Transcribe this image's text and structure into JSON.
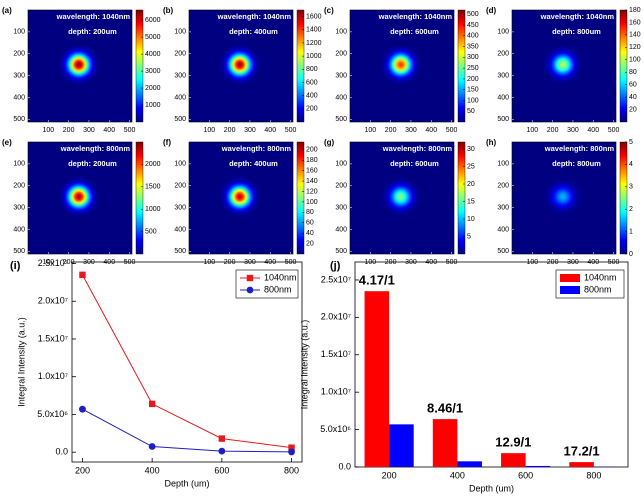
{
  "chart_data": [
    {
      "type": "heatmap",
      "label": "(a)",
      "annotations": [
        "wavelength: 1040nm",
        "depth: 200um"
      ],
      "xlim": [
        0,
        512
      ],
      "ylim": [
        0,
        512
      ],
      "xticks": [
        100,
        200,
        300,
        400,
        500
      ],
      "yticks": [
        100,
        200,
        300,
        400,
        500
      ],
      "clim": [
        0,
        6600
      ],
      "cticks": [
        1000,
        2000,
        3000,
        4000,
        5000,
        6000
      ],
      "center": [
        250,
        250
      ],
      "peak": 6500,
      "colormap": "jet"
    },
    {
      "type": "heatmap",
      "label": "(b)",
      "annotations": [
        "wavelength: 1040nm",
        "depth: 400um"
      ],
      "xlim": [
        0,
        512
      ],
      "ylim": [
        0,
        512
      ],
      "xticks": [
        100,
        200,
        300,
        400,
        500
      ],
      "yticks": [
        100,
        200,
        300,
        400,
        500
      ],
      "clim": [
        0,
        1700
      ],
      "cticks": [
        200,
        400,
        600,
        800,
        1000,
        1200,
        1400,
        1600
      ],
      "center": [
        250,
        250
      ],
      "peak": 1650,
      "colormap": "jet"
    },
    {
      "type": "heatmap",
      "label": "(c)",
      "annotations": [
        "wavelength: 1040nm",
        "depth: 600um"
      ],
      "xlim": [
        0,
        512
      ],
      "ylim": [
        0,
        512
      ],
      "xticks": [
        100,
        200,
        300,
        400,
        500
      ],
      "yticks": [
        100,
        200,
        300,
        400,
        500
      ],
      "clim": [
        0,
        520
      ],
      "cticks": [
        50,
        100,
        150,
        200,
        250,
        300,
        350,
        400,
        450,
        500
      ],
      "center": [
        250,
        250
      ],
      "peak": 430,
      "colormap": "jet"
    },
    {
      "type": "heatmap",
      "label": "(d)",
      "annotations": [
        "wavelength: 1040nm",
        "depth: 800um"
      ],
      "xlim": [
        0,
        512
      ],
      "ylim": [
        0,
        512
      ],
      "xticks": [
        100,
        200,
        300,
        400,
        500
      ],
      "yticks": [
        100,
        200,
        300,
        400,
        500
      ],
      "clim": [
        0,
        180
      ],
      "cticks": [
        20,
        40,
        60,
        80,
        100,
        120,
        140,
        160,
        180
      ],
      "center": [
        250,
        250
      ],
      "peak": 100,
      "colormap": "jet"
    },
    {
      "type": "heatmap",
      "label": "(e)",
      "annotations": [
        "wavelength: 800nm",
        "depth: 200um"
      ],
      "xlim": [
        0,
        512
      ],
      "ylim": [
        0,
        512
      ],
      "xticks": [
        100,
        200,
        300,
        400,
        500
      ],
      "yticks": [
        100,
        200,
        300,
        400,
        500
      ],
      "clim": [
        0,
        2500
      ],
      "cticks": [
        500,
        1000,
        1500,
        2000
      ],
      "center": [
        250,
        250
      ],
      "peak": 2400,
      "colormap": "jet"
    },
    {
      "type": "heatmap",
      "label": "(f)",
      "annotations": [
        "wavelength: 800nm",
        "depth: 400um"
      ],
      "xlim": [
        0,
        512
      ],
      "ylim": [
        0,
        512
      ],
      "xticks": [
        100,
        200,
        300,
        400,
        500
      ],
      "yticks": [
        100,
        200,
        300,
        400,
        500
      ],
      "clim": [
        0,
        215
      ],
      "cticks": [
        20,
        40,
        60,
        80,
        100,
        120,
        140,
        160,
        180,
        200
      ],
      "center": [
        250,
        250
      ],
      "peak": 200,
      "colormap": "jet"
    },
    {
      "type": "heatmap",
      "label": "(g)",
      "annotations": [
        "wavelength: 800nm",
        "depth: 600um"
      ],
      "xlim": [
        0,
        512
      ],
      "ylim": [
        0,
        512
      ],
      "xticks": [
        100,
        200,
        300,
        400,
        500
      ],
      "yticks": [
        100,
        200,
        300,
        400,
        500
      ],
      "clim": [
        0,
        32
      ],
      "cticks": [
        5,
        10,
        15,
        20,
        25,
        30
      ],
      "center": [
        250,
        250
      ],
      "peak": 16,
      "colormap": "jet"
    },
    {
      "type": "heatmap",
      "label": "(h)",
      "annotations": [
        "wavelength: 800nm",
        "depth: 800um"
      ],
      "xlim": [
        0,
        512
      ],
      "ylim": [
        0,
        512
      ],
      "xticks": [
        100,
        200,
        300,
        400,
        500
      ],
      "yticks": [
        100,
        200,
        300,
        400,
        500
      ],
      "clim": [
        0,
        5
      ],
      "cticks": [
        0,
        1,
        2,
        3,
        4,
        5
      ],
      "center": [
        250,
        250
      ],
      "peak": 1.5,
      "colormap": "jet"
    },
    {
      "type": "line",
      "label": "(i)",
      "x_label": "Depth (um)",
      "y_label": "Integral Intensity (a.u.)",
      "x": [
        200,
        400,
        600,
        800
      ],
      "series": [
        {
          "name": "1040nm",
          "color": "#e41a1c",
          "marker": "square",
          "values": [
            23500000,
            6400000,
            1800000,
            600000
          ]
        },
        {
          "name": "800nm",
          "color": "#1f1fbf",
          "marker": "circle",
          "values": [
            5700000,
            750000,
            140000,
            35000
          ]
        }
      ],
      "xlim": [
        170,
        830
      ],
      "xticks": [
        200,
        400,
        600,
        800
      ],
      "ylim": [
        -1300000,
        25200000
      ],
      "yticks": [
        {
          "value": 0,
          "label": "0.0"
        },
        {
          "value": 5000000,
          "label": "5.0x10⁶"
        },
        {
          "value": 10000000,
          "label": "1.0x10⁷"
        },
        {
          "value": 15000000,
          "label": "1.5x10⁷"
        },
        {
          "value": 20000000,
          "label": "2.0x10⁷"
        },
        {
          "value": 25000000,
          "label": "2.5x10⁷"
        }
      ],
      "legend": "top-right"
    },
    {
      "type": "bar",
      "label": "(j)",
      "x_label": "Depth (um)",
      "y_label": "Integral Intensity (a.u.)",
      "categories": [
        "200",
        "400",
        "600",
        "800"
      ],
      "series": [
        {
          "name": "1040nm",
          "color": "#ff0000",
          "values": [
            23500000,
            6400000,
            1850000,
            650000
          ]
        },
        {
          "name": "800nm",
          "color": "#0000ff",
          "values": [
            5700000,
            760000,
            140000,
            38000
          ]
        }
      ],
      "annotations": [
        "4.17/1",
        "8.46/1",
        "12.9/1",
        "17.2/1"
      ],
      "ylim": [
        0,
        27400000
      ],
      "yticks": [
        {
          "value": 0,
          "label": "0.0"
        },
        {
          "value": 5000000,
          "label": "5.0x10⁶"
        },
        {
          "value": 10000000,
          "label": "1.0x10⁷"
        },
        {
          "value": 15000000,
          "label": "1.5x10⁷"
        },
        {
          "value": 20000000,
          "label": "2.0x10⁷"
        },
        {
          "value": 25000000,
          "label": "2.5x10⁷"
        }
      ],
      "legend": "top-right"
    }
  ]
}
